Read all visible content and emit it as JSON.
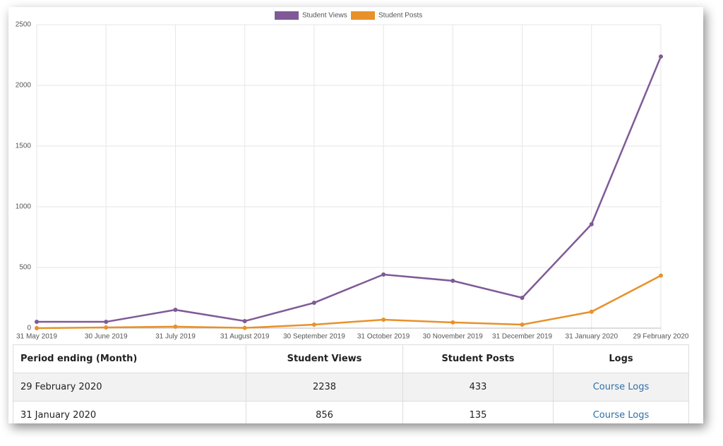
{
  "chart_data": {
    "type": "line",
    "categories": [
      "31 May 2019",
      "30 June 2019",
      "31 July 2019",
      "31 August 2019",
      "30 September 2019",
      "31 October 2019",
      "30 November 2019",
      "31 December 2019",
      "31 January 2020",
      "29 February 2020"
    ],
    "series": [
      {
        "name": "Student Views",
        "color": "#7f5a96",
        "values": [
          52,
          52,
          151,
          58,
          209,
          442,
          390,
          250,
          856,
          2238
        ]
      },
      {
        "name": "Student Posts",
        "color": "#e8912a",
        "values": [
          0,
          6,
          12,
          2,
          29,
          70,
          47,
          29,
          135,
          433
        ]
      }
    ],
    "ylim": [
      0,
      2500
    ],
    "yticks": [
      0,
      500,
      1000,
      1500,
      2000,
      2500
    ],
    "grid": true,
    "legend": "top"
  },
  "table": {
    "header": [
      "Period ending (Month)",
      "Student Views",
      "Student Posts",
      "Logs"
    ],
    "rows": [
      [
        "29 February 2020",
        "2238",
        "433",
        "Course Logs"
      ],
      [
        "31 January 2020",
        "856",
        "135",
        "Course Logs"
      ]
    ]
  }
}
